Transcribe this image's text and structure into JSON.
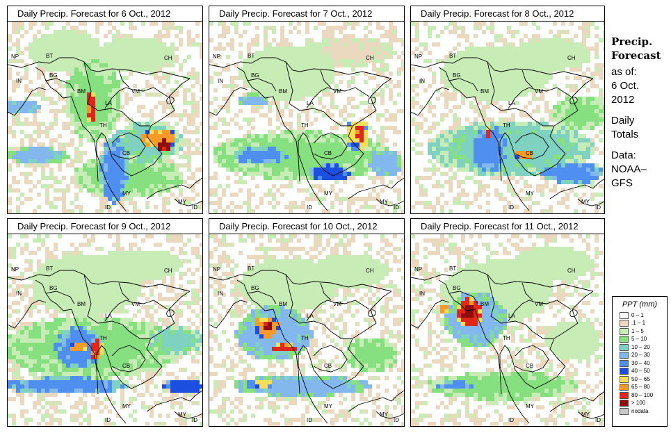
{
  "panels": [
    {
      "title": "Daily Precip. Forecast for  6 Oct., 2012",
      "scenario": "day6"
    },
    {
      "title": "Daily Precip. Forecast for  7 Oct., 2012",
      "scenario": "day7"
    },
    {
      "title": "Daily Precip. Forecast for  8 Oct., 2012",
      "scenario": "day8"
    },
    {
      "title": "Daily Precip. Forecast for  9 Oct., 2012",
      "scenario": "day9"
    },
    {
      "title": "Daily Precip. Forecast for  10 Oct., 2012",
      "scenario": "day10"
    },
    {
      "title": "Daily Precip. Forecast for  11 Oct., 2012",
      "scenario": "day11"
    }
  ],
  "country_labels": [
    "NP",
    "BT",
    "IN",
    "BG",
    "BM",
    "CH",
    "VM",
    "LA",
    "TH",
    "CB",
    "MY",
    "ID",
    "MY",
    "ID"
  ],
  "side": {
    "title_line1": "Precip.",
    "title_line2": "Forecast",
    "asof_label": "as of:",
    "date_line1": "6 Oct.",
    "date_line2": "2012",
    "daily_line1": "Daily",
    "daily_line2": "Totals",
    "data_line1": "Data:",
    "data_line2": "NOAA–",
    "data_line3": "GFS"
  },
  "legend": {
    "title": "PPT (mm)",
    "items": [
      {
        "label": "0 – 1",
        "color": "#ffffff"
      },
      {
        "label": ".1 – 1",
        "color": "#ead8bf"
      },
      {
        "label": "1 – 5",
        "color": "#c8ecb6"
      },
      {
        "label": "5 – 10",
        "color": "#86e07f"
      },
      {
        "label": "10 – 20",
        "color": "#7fd2c0"
      },
      {
        "label": "20 – 30",
        "color": "#83b8ee"
      },
      {
        "label": "30 – 40",
        "color": "#4f8ff0"
      },
      {
        "label": "40 – 50",
        "color": "#1c4fe0"
      },
      {
        "label": "50 – 65",
        "color": "#f5de5a"
      },
      {
        "label": "65 – 80",
        "color": "#f79a2a"
      },
      {
        "label": "80 – 100",
        "color": "#e0281a"
      },
      {
        "label": "> 100",
        "color": "#8e0e0e"
      },
      {
        "label": "nodata",
        "color": "#c8c8c8"
      }
    ]
  }
}
